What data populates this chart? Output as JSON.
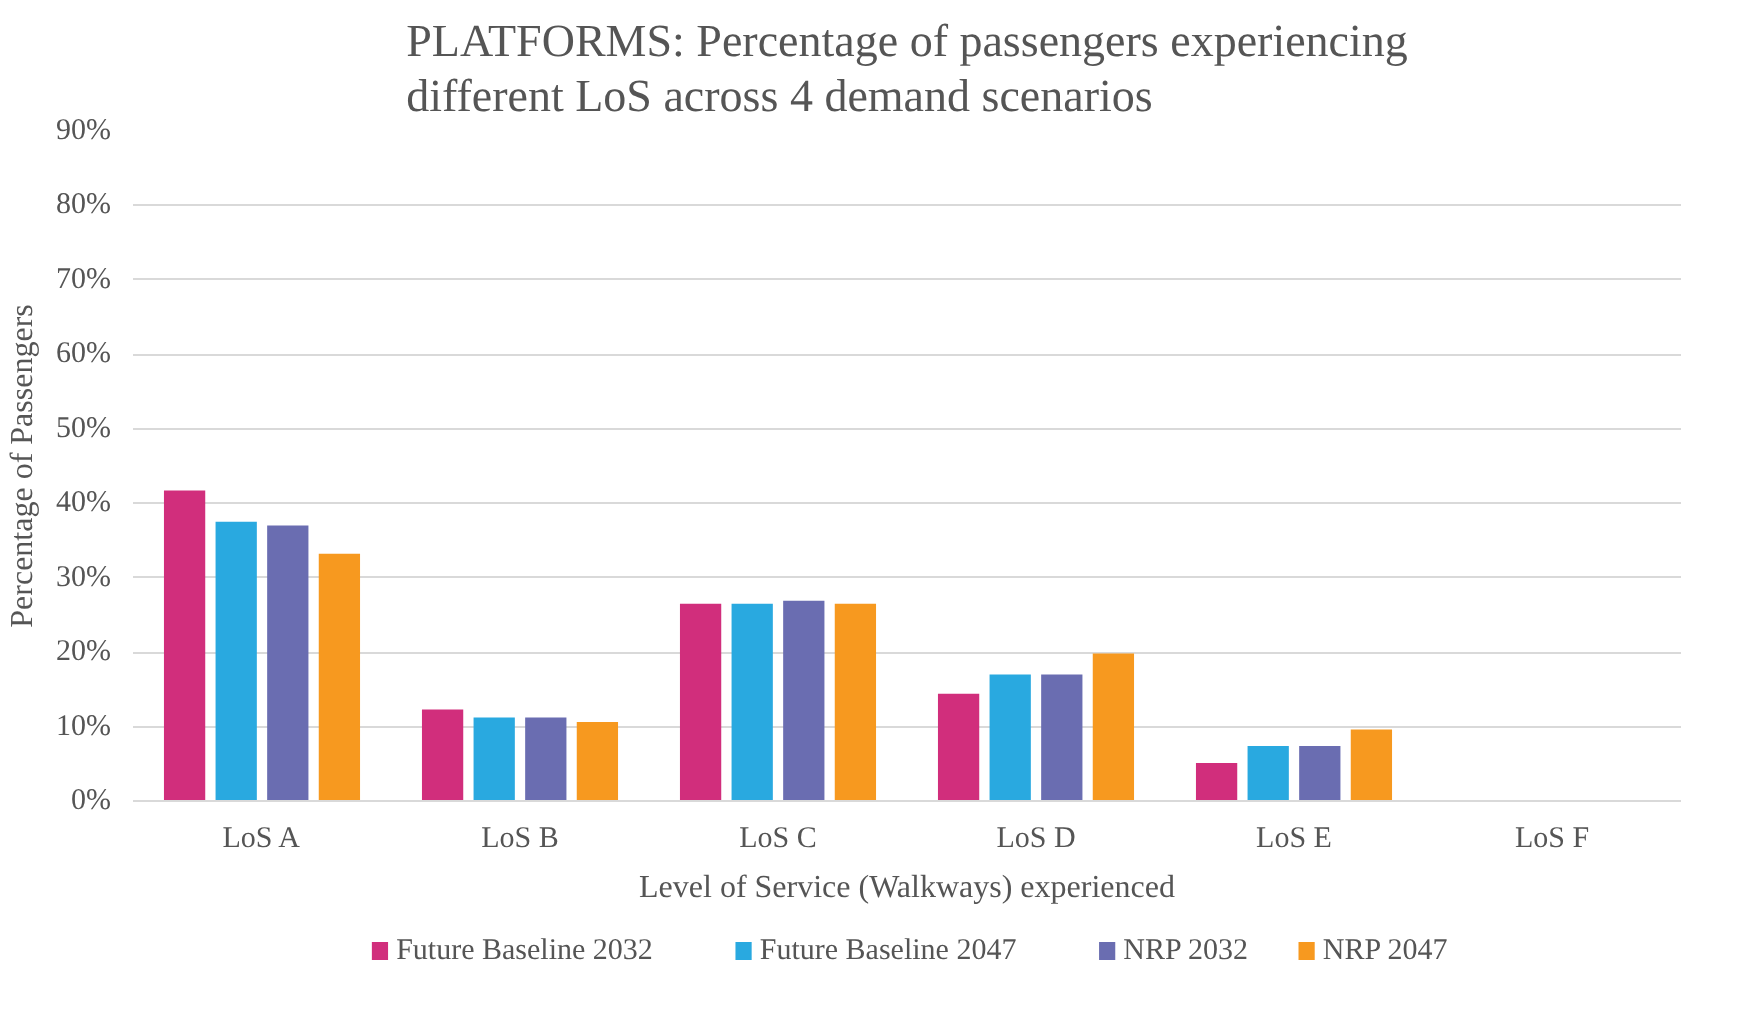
{
  "chart_data": {
    "type": "bar",
    "title": "PLATFORMS: Percentage of passengers experiencing different  LoS across 4 demand scenarios",
    "xlabel": "Level of Service (Walkways) experienced",
    "ylabel": "Percentage of Passengers",
    "categories": [
      "LoS A",
      "LoS B",
      "LoS C",
      "LoS D",
      "LoS E",
      "LoS F"
    ],
    "series": [
      {
        "name": "Future Baseline 2032",
        "color": "#d12e7c",
        "values": [
          41.7,
          12.3,
          26.5,
          14.4,
          5.1,
          0
        ]
      },
      {
        "name": "Future Baseline 2047",
        "color": "#29a9e0",
        "values": [
          37.5,
          11.2,
          26.5,
          17.0,
          7.4,
          0
        ]
      },
      {
        "name": "NRP 2032",
        "color": "#6a6db1",
        "values": [
          37.0,
          11.2,
          26.9,
          17.0,
          7.4,
          0
        ]
      },
      {
        "name": "NRP 2047",
        "color": "#f7991f",
        "values": [
          33.2,
          10.6,
          26.5,
          19.8,
          9.6,
          0
        ]
      }
    ],
    "ylim": [
      0,
      90
    ],
    "yticks": [
      {
        "value": 0,
        "label": "0%"
      },
      {
        "value": 10,
        "label": "10%"
      },
      {
        "value": 20,
        "label": "20%"
      },
      {
        "value": 30,
        "label": "30%"
      },
      {
        "value": 40,
        "label": "40%"
      },
      {
        "value": 50,
        "label": "50%"
      },
      {
        "value": 60,
        "label": "60%"
      },
      {
        "value": 70,
        "label": "70%"
      },
      {
        "value": 80,
        "label": "80%"
      },
      {
        "value": 90,
        "label": "90%"
      }
    ],
    "grid": "y",
    "legend": "bottom"
  }
}
